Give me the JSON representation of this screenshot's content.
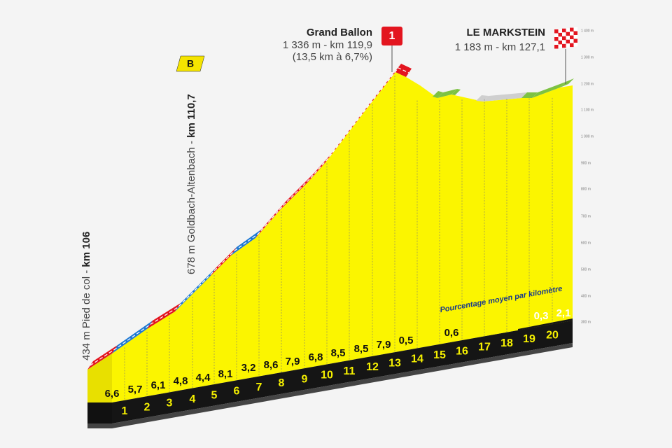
{
  "summits": [
    {
      "name": "Grand Ballon",
      "details": [
        "1 336 m - km 119,9",
        "(13,5 km à 6,7%)"
      ],
      "badge": "1"
    },
    {
      "name": "LE MARKSTEIN",
      "details": [
        "1 183 m - km 127,1"
      ]
    }
  ],
  "start": {
    "label": "434 m Pied de col - ",
    "km": "km 106"
  },
  "sprint": {
    "badge": "B",
    "label": "678 m Goldbach-Altenbach - ",
    "km": "km 110,7"
  },
  "altitude_axis": [
    "1 400 m",
    "1 300 m",
    "1 200 m",
    "1 100 m",
    "1 000 m",
    "900 m",
    "800 m",
    "700 m",
    "600 m",
    "500 m",
    "400 m",
    "300 m"
  ],
  "legend": "Pourcentage moyen par kilomètre",
  "gradients": [
    "6,6",
    "5,7",
    "6,1",
    "4,8",
    "4,4",
    "8,1",
    "3,2",
    "8,6",
    "7,9",
    "6,8",
    "8,5",
    "8,5",
    "7,9",
    "0,5",
    "0,6",
    "0,3",
    "2,1"
  ],
  "kilometers": [
    "1",
    "2",
    "3",
    "4",
    "5",
    "6",
    "7",
    "8",
    "9",
    "10",
    "11",
    "12",
    "13",
    "14",
    "15",
    "16",
    "17",
    "18",
    "19",
    "20"
  ]
}
